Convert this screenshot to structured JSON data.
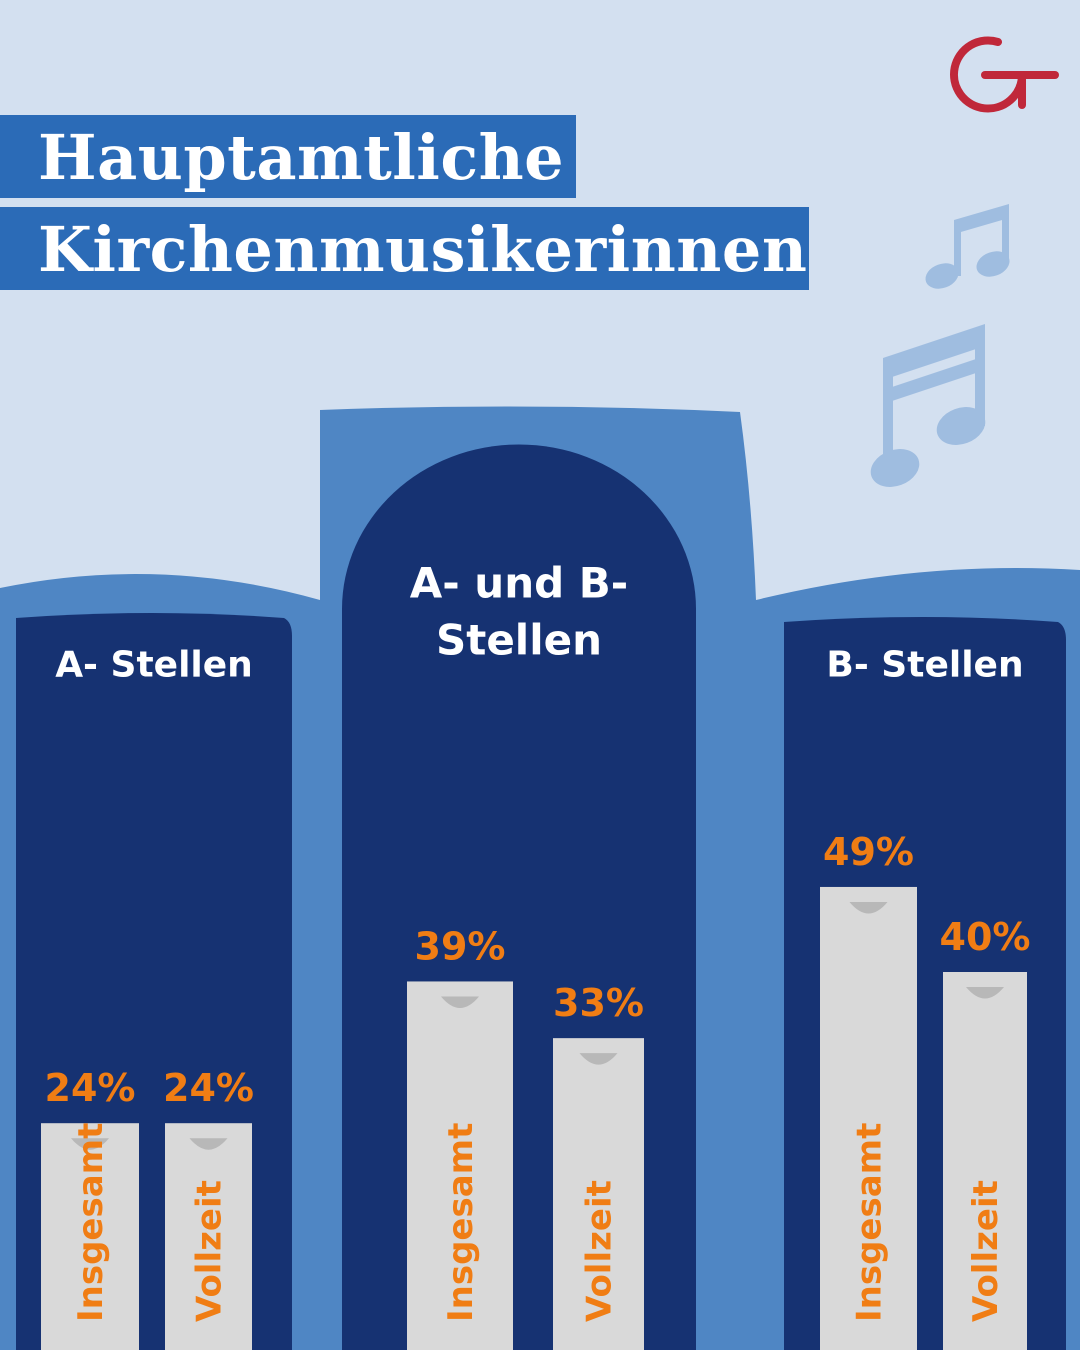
{
  "title": {
    "line1": "Hauptamtliche",
    "line2": "Kirchenmusikerinnen"
  },
  "logo": {
    "name": "circle-plus-logo",
    "color": "#c0283a"
  },
  "decorations": {
    "icons": [
      "music-note-icon",
      "music-note-icon"
    ]
  },
  "colors": {
    "background": "#d3e0f0",
    "title_band": "#2b6bb7",
    "organ_case": "#4f86c4",
    "pipe": "#163272",
    "bar": "#d9d9d9",
    "bar_notch": "#b8b8b8",
    "value_text": "#f07d14",
    "note": "#9fbde0"
  },
  "chart_data": {
    "type": "bar",
    "title": "Hauptamtliche Kirchenmusikerinnen",
    "unit": "%",
    "groups": [
      "A- Stellen",
      "A- und B- Stellen",
      "B- Stellen"
    ],
    "series": [
      {
        "name": "Insgesamt",
        "values": [
          24,
          39,
          49
        ]
      },
      {
        "name": "Vollzeit",
        "values": [
          24,
          33,
          40
        ]
      }
    ],
    "value_labels": [
      [
        "24%",
        "24%"
      ],
      [
        "39%",
        "33%"
      ],
      [
        "49%",
        "40%"
      ]
    ],
    "groups_display": [
      [
        "A- Stellen"
      ],
      [
        "A- und B-",
        "Stellen"
      ],
      [
        "B- Stellen"
      ]
    ]
  }
}
